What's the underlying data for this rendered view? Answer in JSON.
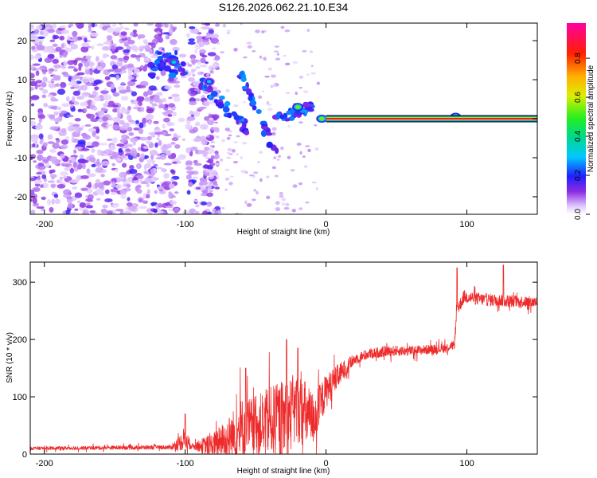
{
  "title": "S126.2026.062.21.10.E34",
  "chart_data": [
    {
      "type": "heatmap",
      "panel": "spectrogram",
      "title": "S126.2026.062.21.10.E34",
      "xlabel": "Height of straight line (km)",
      "ylabel": "Frequency (Hz)",
      "xlim": [
        -210,
        150
      ],
      "ylim": [
        -24.5,
        24.5
      ],
      "xticks": [
        -200,
        -100,
        0,
        100
      ],
      "xtick_labels": [
        "-200",
        "-100",
        "0",
        "100"
      ],
      "yticks": [
        -20,
        -10,
        0,
        10,
        20
      ],
      "ytick_labels": [
        "-20",
        "-10",
        "0",
        "10",
        "20"
      ],
      "colorbar": {
        "label": "Normalized spectral amplitude",
        "range": [
          0,
          0.98
        ],
        "ticks": [
          0.0,
          0.2,
          0.4,
          0.6,
          0.8
        ],
        "tick_labels": [
          "0.0",
          "0.2",
          "0.4",
          "0.6",
          "0.8"
        ],
        "colormap": "rainbow (white-violet-blue-cyan-green-yellow-orange-red-magenta)"
      },
      "features": {
        "noise_region_km": [
          -210,
          -85
        ],
        "gap_region_km": [
          -105,
          -98
        ],
        "tone_start_km": 0,
        "tone_frequency_hz": 0,
        "tone_amplitude": 0.9,
        "chirp_segments": [
          {
            "x": [
              -88,
              -55
            ],
            "y": [
              9,
              -3
            ]
          },
          {
            "x": [
              -62,
              -36
            ],
            "y": [
              13,
              -9
            ]
          },
          {
            "x": [
              -35,
              -10
            ],
            "y": [
              0,
              3
            ]
          }
        ],
        "hot_spots": [
          {
            "x": -108,
            "y": 14.5,
            "amp": 0.35
          },
          {
            "x": -83,
            "y": 9.5,
            "amp": 0.3
          },
          {
            "x": -20,
            "y": 3,
            "amp": 0.55
          },
          {
            "x": -3,
            "y": 0,
            "amp": 0.55
          },
          {
            "x": 92,
            "y": 0.5,
            "amp": 0.55
          }
        ]
      }
    },
    {
      "type": "line",
      "panel": "snr",
      "xlabel": "Height of straight line (km)",
      "ylabel": "SNR (10 * v/v)",
      "xlim": [
        -210,
        150
      ],
      "ylim": [
        0,
        335
      ],
      "xticks": [
        -200,
        -100,
        0,
        100
      ],
      "xtick_labels": [
        "-200",
        "-100",
        "0",
        "100"
      ],
      "yticks": [
        0,
        100,
        200,
        300
      ],
      "ytick_labels": [
        "0",
        "100",
        "200",
        "300"
      ],
      "color": "#ee2b2b",
      "trend": {
        "x": [
          -210,
          -110,
          -100,
          -95,
          -80,
          -60,
          -45,
          -30,
          -20,
          -15,
          -10,
          -5,
          0,
          10,
          20,
          30,
          45,
          60,
          85,
          91,
          93,
          98,
          110,
          125,
          150
        ],
        "y": [
          10,
          12,
          25,
          14,
          15,
          40,
          55,
          60,
          80,
          70,
          60,
          80,
          110,
          140,
          165,
          175,
          180,
          180,
          185,
          190,
          250,
          275,
          270,
          268,
          265
        ]
      },
      "noise_amplitude": {
        "x": [
          -210,
          -110,
          -100,
          -95,
          -70,
          -60,
          -50,
          -30,
          -15,
          0,
          20,
          90,
          93,
          150
        ],
        "y": [
          3,
          4,
          20,
          5,
          35,
          60,
          50,
          70,
          60,
          30,
          10,
          8,
          12,
          10
        ]
      },
      "spikes": [
        {
          "x": -100,
          "y": 70
        },
        {
          "x": -57,
          "y": 150
        },
        {
          "x": -28,
          "y": 200
        },
        {
          "x": -20,
          "y": 185
        },
        {
          "x": 93,
          "y": 325
        },
        {
          "x": 126,
          "y": 330
        }
      ]
    }
  ]
}
